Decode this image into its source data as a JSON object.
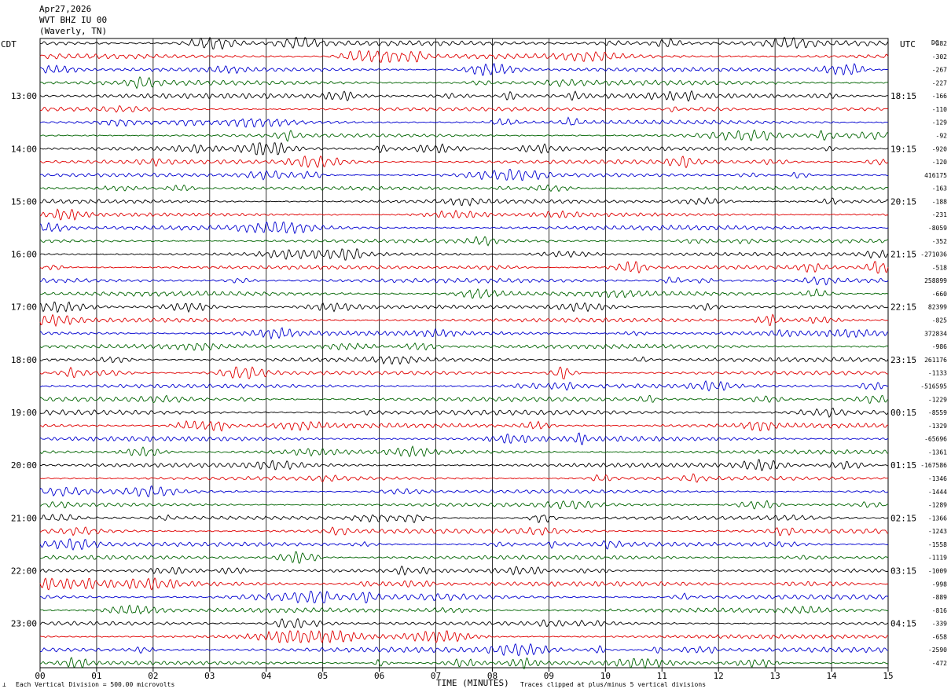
{
  "header": {
    "date": "Apr27,2026",
    "station": "WVT BHZ IU 00",
    "location": "(Waverly, TN)"
  },
  "labels": {
    "left_tz": "CDT",
    "right_tz": "UTC",
    "dc": "DC",
    "xlabel": "TIME (MINUTES)",
    "scale_note": "Each Vertical Division =  500.00 microvolts",
    "clip_note": "Traces clipped at plus/minus 5 vertical divisions"
  },
  "colors": {
    "trace_cycle": [
      "#000000",
      "#e00000",
      "#0000d0",
      "#006400"
    ],
    "grid": "#000000"
  },
  "chart_data": {
    "type": "line",
    "title": "",
    "xlabel": "TIME (MINUTES)",
    "ylabel": "",
    "xlim": [
      0,
      15
    ],
    "x_ticks": [
      "00",
      "01",
      "02",
      "03",
      "04",
      "05",
      "06",
      "07",
      "08",
      "09",
      "10",
      "11",
      "12",
      "13",
      "14",
      "15"
    ],
    "rows": 48,
    "left_hour_labels": [
      {
        "row": 4,
        "text": "13:00"
      },
      {
        "row": 8,
        "text": "14:00"
      },
      {
        "row": 12,
        "text": "15:00"
      },
      {
        "row": 16,
        "text": "16:00"
      },
      {
        "row": 20,
        "text": "17:00"
      },
      {
        "row": 24,
        "text": "18:00"
      },
      {
        "row": 28,
        "text": "19:00"
      },
      {
        "row": 32,
        "text": "20:00"
      },
      {
        "row": 36,
        "text": "21:00"
      },
      {
        "row": 40,
        "text": "22:00"
      },
      {
        "row": 44,
        "text": "23:00"
      }
    ],
    "right_hour_labels": [
      {
        "row": 4,
        "text": "18:15"
      },
      {
        "row": 8,
        "text": "19:15"
      },
      {
        "row": 12,
        "text": "20:15"
      },
      {
        "row": 16,
        "text": "21:15"
      },
      {
        "row": 20,
        "text": "22:15"
      },
      {
        "row": 24,
        "text": "23:15"
      },
      {
        "row": 28,
        "text": "00:15"
      },
      {
        "row": 32,
        "text": "01:15"
      },
      {
        "row": 36,
        "text": "02:15"
      },
      {
        "row": 40,
        "text": "03:15"
      },
      {
        "row": 44,
        "text": "04:15"
      }
    ],
    "dc_offsets": [
      "-382",
      "-302",
      "-267",
      "-227",
      "-166",
      "-110",
      "-129",
      "-92",
      "-920",
      "-120",
      "416175",
      "-163",
      "-188",
      "-231",
      "-8059",
      "-352",
      "-271036",
      "-518",
      "258899",
      "-660",
      "82399",
      "-825",
      "372834",
      "-986",
      "261176",
      "-1133",
      "-516595",
      "-1229",
      "-8559",
      "-1329",
      "-65696",
      "-1361",
      "-167586",
      "-1346",
      "-1444",
      "-1289",
      "-1366",
      "-1243",
      "-1558",
      "-1119",
      "-1009",
      "-998",
      "-889",
      "-816",
      "-339",
      "-658",
      "-2590",
      "-472"
    ],
    "series_note": "48 one-row traces spanning 15 minutes each; colors repeat black, red, blue, green"
  }
}
